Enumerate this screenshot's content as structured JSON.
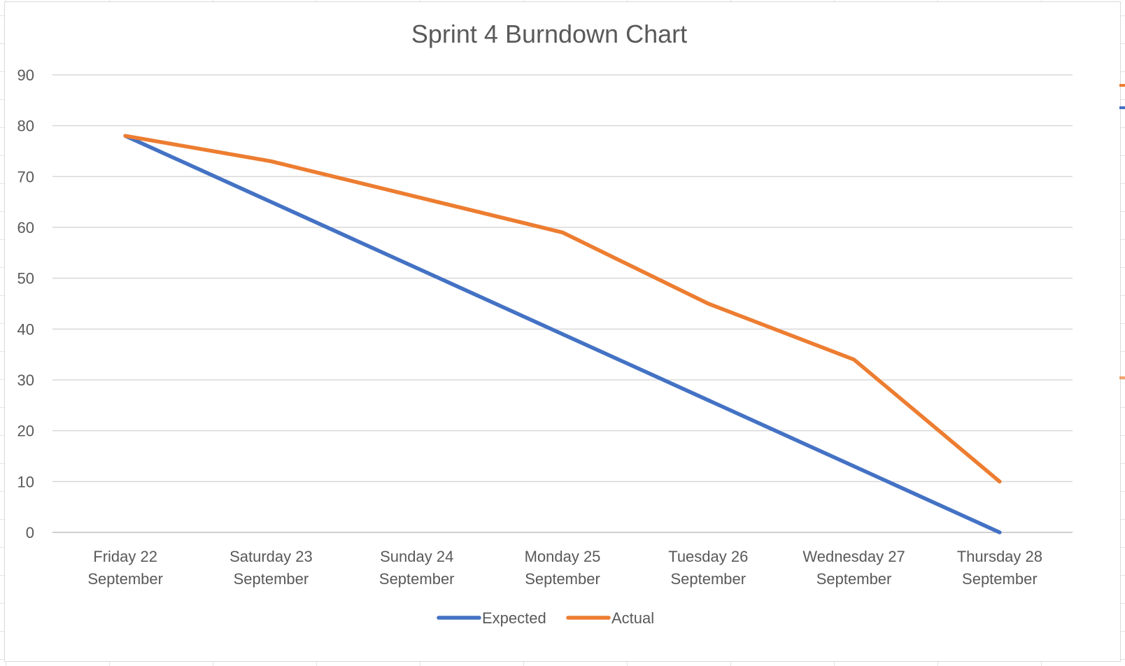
{
  "chart_data": {
    "type": "line",
    "title": "Sprint 4 Burndown Chart",
    "xlabel": "",
    "ylabel": "",
    "categories": [
      [
        "Friday 22",
        "September"
      ],
      [
        "Saturday 23",
        "September"
      ],
      [
        "Sunday 24",
        "September"
      ],
      [
        "Monday 25",
        "September"
      ],
      [
        "Tuesday 26",
        "September"
      ],
      [
        "Wednesday 27",
        "September"
      ],
      [
        "Thursday 28",
        "September"
      ]
    ],
    "ylim": [
      0,
      90
    ],
    "yticks": [
      0,
      10,
      20,
      30,
      40,
      50,
      60,
      70,
      80,
      90
    ],
    "grid": true,
    "legend": "bottom",
    "series": [
      {
        "name": "Expected",
        "color": "#4472C4",
        "values": [
          78,
          65,
          52,
          39,
          26,
          13,
          0
        ]
      },
      {
        "name": "Actual",
        "color": "#ED7D31",
        "values": [
          78,
          73,
          66,
          59,
          45,
          34,
          10
        ]
      }
    ]
  }
}
